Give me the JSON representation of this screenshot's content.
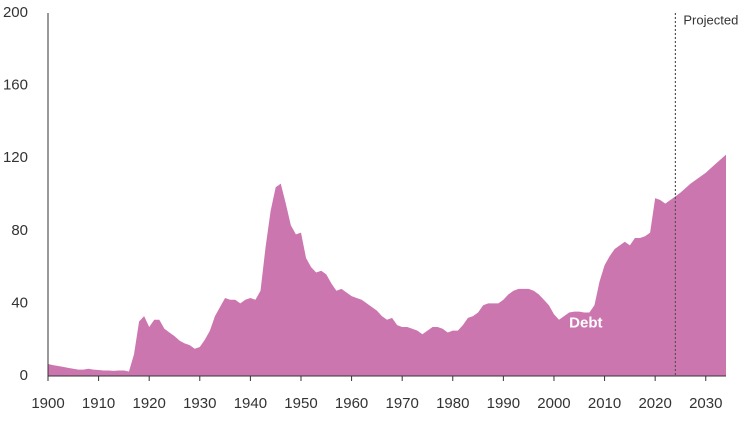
{
  "chart_data": {
    "type": "area",
    "x": [
      1900,
      1901,
      1902,
      1903,
      1904,
      1905,
      1906,
      1907,
      1908,
      1909,
      1910,
      1911,
      1912,
      1913,
      1914,
      1915,
      1916,
      1917,
      1918,
      1919,
      1920,
      1921,
      1922,
      1923,
      1924,
      1925,
      1926,
      1927,
      1928,
      1929,
      1930,
      1931,
      1932,
      1933,
      1934,
      1935,
      1936,
      1937,
      1938,
      1939,
      1940,
      1941,
      1942,
      1943,
      1944,
      1945,
      1946,
      1947,
      1948,
      1949,
      1950,
      1951,
      1952,
      1953,
      1954,
      1955,
      1956,
      1957,
      1958,
      1959,
      1960,
      1961,
      1962,
      1963,
      1964,
      1965,
      1966,
      1967,
      1968,
      1969,
      1970,
      1971,
      1972,
      1973,
      1974,
      1975,
      1976,
      1977,
      1978,
      1979,
      1980,
      1981,
      1982,
      1983,
      1984,
      1985,
      1986,
      1987,
      1988,
      1989,
      1990,
      1991,
      1992,
      1993,
      1994,
      1995,
      1996,
      1997,
      1998,
      1999,
      2000,
      2001,
      2002,
      2003,
      2004,
      2005,
      2006,
      2007,
      2008,
      2009,
      2010,
      2011,
      2012,
      2013,
      2014,
      2015,
      2016,
      2017,
      2018,
      2019,
      2020,
      2021,
      2022,
      2023,
      2024,
      2025,
      2026,
      2027,
      2028,
      2029,
      2030,
      2031,
      2032,
      2033,
      2034
    ],
    "series": [
      {
        "name": "Debt",
        "color": "#cc76b0",
        "values": [
          6.6,
          6,
          5.5,
          5,
          4.5,
          4,
          3.5,
          3.5,
          4,
          3.5,
          3.3,
          3,
          3,
          2.8,
          3,
          3,
          2.5,
          12,
          30,
          33,
          27,
          31,
          31,
          26,
          24,
          22,
          19.5,
          18,
          17,
          15,
          16,
          20,
          25,
          33,
          38,
          43,
          42,
          42,
          40,
          42,
          43,
          42,
          47,
          71,
          91,
          104,
          106,
          95,
          83,
          78,
          79,
          65,
          60,
          57,
          58,
          56,
          51,
          47,
          48,
          46,
          44,
          43,
          42,
          40,
          38,
          36,
          33,
          31,
          32,
          28,
          27,
          27,
          26,
          25,
          23,
          25,
          27,
          27,
          26,
          24,
          25,
          25,
          28,
          32,
          33,
          35,
          39,
          40,
          40,
          40,
          42,
          45,
          47,
          48,
          48,
          48,
          47,
          45,
          42,
          39,
          34,
          31,
          33,
          35,
          35.5,
          35.5,
          35,
          35,
          39,
          52,
          61,
          66,
          70,
          72,
          74,
          72,
          76,
          76,
          77,
          79,
          98,
          97,
          95,
          97,
          99,
          101,
          103.5,
          106,
          108,
          110,
          112,
          114.5,
          117,
          119.5,
          122
        ]
      }
    ],
    "xlim": [
      1900,
      2034
    ],
    "ylim": [
      0,
      200
    ],
    "xticks": [
      1900,
      1910,
      1920,
      1930,
      1940,
      1950,
      1960,
      1970,
      1980,
      1990,
      2000,
      2010,
      2020,
      2030
    ],
    "yticks": [
      0,
      40,
      80,
      120,
      160,
      200
    ],
    "annotations": [
      {
        "text": "Projected",
        "x": 2024
      }
    ]
  }
}
